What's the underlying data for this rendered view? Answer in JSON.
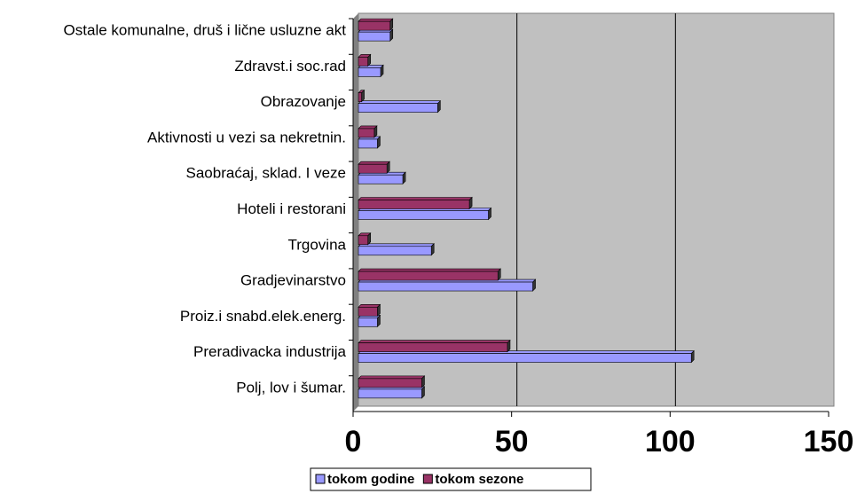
{
  "chart_data": {
    "type": "hbar",
    "categories": [
      "Ostale komunalne, druš i lične usluzne akt",
      "Zdravst.i soc.rad",
      "Obrazovanje",
      "Aktivnosti u vezi sa nekretnin.",
      "Saobraćaj, sklad. I veze",
      "Hoteli i restorani",
      "Trgovina",
      "Gradjevinarstvo",
      "Proiz.i snabd.elek.energ.",
      "Preradivacka industrija",
      "Polj, lov i šumar."
    ],
    "series": [
      {
        "name": "tokom godine",
        "color": "#9999ff",
        "values": [
          10,
          7,
          25,
          6,
          14,
          41,
          23,
          55,
          6,
          105,
          20
        ]
      },
      {
        "name": "tokom sezone",
        "color": "#993366",
        "values": [
          10,
          3,
          1,
          5,
          9,
          35,
          3,
          44,
          6,
          47,
          20
        ]
      }
    ],
    "xlim": [
      0,
      150
    ],
    "xticks": [
      0,
      50,
      100,
      150
    ],
    "grid": true,
    "legend": "bottom"
  }
}
